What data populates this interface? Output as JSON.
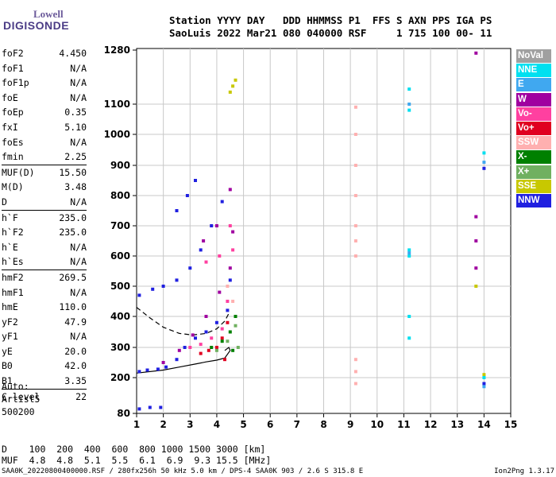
{
  "logo": {
    "line1": "Lowell",
    "line2": "DIGISONDE"
  },
  "header": {
    "line1": "Station YYYY DAY   DDD HHMMSS P1  FFS S AXN PPS IGA PS",
    "line2": "SaoLuis 2022 Mar21 080 040000 RSF     1 715 100 00- 11"
  },
  "params": [
    {
      "group": [
        {
          "name": "foF2",
          "value": "4.450"
        },
        {
          "name": "foF1",
          "value": "N/A"
        },
        {
          "name": "foF1p",
          "value": "N/A"
        },
        {
          "name": "foE",
          "value": "N/A"
        },
        {
          "name": "foEp",
          "value": "0.35"
        },
        {
          "name": "fxI",
          "value": "5.10"
        },
        {
          "name": "foEs",
          "value": "N/A"
        },
        {
          "name": "fmin",
          "value": "2.25"
        }
      ]
    },
    {
      "group": [
        {
          "name": "MUF(D)",
          "value": "15.50"
        },
        {
          "name": "M(D)",
          "value": "3.48"
        },
        {
          "name": "D",
          "value": "N/A"
        }
      ]
    },
    {
      "group": [
        {
          "name": "h`F",
          "value": "235.0"
        },
        {
          "name": "h`F2",
          "value": "235.0"
        },
        {
          "name": "h`E",
          "value": "N/A"
        },
        {
          "name": "h`Es",
          "value": "N/A"
        }
      ]
    },
    {
      "group": [
        {
          "name": "hmF2",
          "value": "269.5"
        },
        {
          "name": "hmF1",
          "value": "N/A"
        },
        {
          "name": "hmE",
          "value": "110.0"
        },
        {
          "name": "yF2",
          "value": "47.9"
        },
        {
          "name": "yF1",
          "value": "N/A"
        },
        {
          "name": "yE",
          "value": "20.0"
        },
        {
          "name": "B0",
          "value": "42.0"
        },
        {
          "name": "B1",
          "value": "3.35"
        }
      ]
    },
    {
      "group": [
        {
          "name": "C-level",
          "value": "22"
        }
      ]
    }
  ],
  "auto": {
    "line1": "Auto:",
    "line2": "Artist5",
    "line3": "500200"
  },
  "dmuf": {
    "d_line": "D    100  200  400  600  800 1000 1500 3000 [km]",
    "muf_line": "MUF  4.8  4.8  5.1  5.5  6.1  6.9  9.3 15.5 [MHz]"
  },
  "footer": {
    "left": "SAA0K_20220800400000.RSF / 280fx256h 50 kHz 5.0 km / DPS-4 SAA0K 903 / 2.6 S 315.8 E",
    "right": "Ion2Png 1.3.17"
  },
  "legend": [
    {
      "label": "NoVal",
      "color": "#a0a0a0"
    },
    {
      "label": "NNE",
      "color": "#00e0f0"
    },
    {
      "label": "E",
      "color": "#40a8f0"
    },
    {
      "label": "W",
      "color": "#a000a0"
    },
    {
      "label": "Vo-",
      "color": "#ff40a0"
    },
    {
      "label": "Vo+",
      "color": "#e00020"
    },
    {
      "label": "SSW",
      "color": "#ffb0b0"
    },
    {
      "label": "X-",
      "color": "#008000"
    },
    {
      "label": "X+",
      "color": "#70b060"
    },
    {
      "label": "SSE",
      "color": "#c8c800"
    },
    {
      "label": "NNW",
      "color": "#2020e0"
    }
  ],
  "chart_data": {
    "type": "scatter",
    "title": "",
    "xlabel": "",
    "ylabel": "",
    "xlim": [
      1,
      15
    ],
    "ylim": [
      80,
      1280
    ],
    "xticks": [
      1,
      2,
      3,
      4,
      5,
      6,
      7,
      8,
      9,
      10,
      11,
      12,
      13,
      14,
      15
    ],
    "yticks": [
      80,
      200,
      300,
      400,
      500,
      600,
      700,
      800,
      900,
      1000,
      1100,
      1280
    ],
    "grid": true,
    "series": [
      {
        "name": "NNW",
        "color": "#2020e0",
        "points": [
          [
            1.1,
            220
          ],
          [
            1.4,
            225
          ],
          [
            1.8,
            228
          ],
          [
            2.1,
            235
          ],
          [
            2.5,
            260
          ],
          [
            2.8,
            300
          ],
          [
            3.2,
            330
          ],
          [
            3.6,
            350
          ],
          [
            4.0,
            380
          ],
          [
            4.4,
            420
          ],
          [
            4.5,
            520
          ],
          [
            1.1,
            470
          ],
          [
            1.6,
            490
          ],
          [
            2.0,
            500
          ],
          [
            2.5,
            520
          ],
          [
            3.0,
            560
          ],
          [
            3.4,
            620
          ],
          [
            3.8,
            700
          ],
          [
            4.2,
            780
          ],
          [
            1.1,
            95
          ],
          [
            1.5,
            100
          ],
          [
            1.9,
            100
          ],
          [
            2.5,
            750
          ],
          [
            2.9,
            800
          ],
          [
            3.2,
            850
          ],
          [
            14.0,
            180
          ],
          [
            14.0,
            890
          ]
        ]
      },
      {
        "name": "W",
        "color": "#a000a0",
        "points": [
          [
            2.0,
            250
          ],
          [
            2.6,
            290
          ],
          [
            3.1,
            340
          ],
          [
            3.6,
            400
          ],
          [
            4.1,
            480
          ],
          [
            4.5,
            560
          ],
          [
            4.6,
            680
          ],
          [
            3.5,
            650
          ],
          [
            4.0,
            700
          ],
          [
            4.5,
            820
          ],
          [
            13.7,
            730
          ],
          [
            13.7,
            650
          ],
          [
            13.7,
            560
          ],
          [
            13.7,
            1270
          ]
        ]
      },
      {
        "name": "Vo-",
        "color": "#ff40a0",
        "points": [
          [
            3.0,
            300
          ],
          [
            3.4,
            310
          ],
          [
            3.8,
            330
          ],
          [
            4.2,
            360
          ],
          [
            4.4,
            450
          ],
          [
            4.6,
            620
          ],
          [
            3.6,
            580
          ],
          [
            4.1,
            600
          ],
          [
            4.5,
            700
          ]
        ]
      },
      {
        "name": "Vo+",
        "color": "#e00020",
        "points": [
          [
            3.4,
            280
          ],
          [
            3.7,
            290
          ],
          [
            4.0,
            300
          ],
          [
            4.2,
            330
          ],
          [
            4.4,
            380
          ],
          [
            4.3,
            260
          ]
        ]
      },
      {
        "name": "SSW",
        "color": "#ffb0b0",
        "points": [
          [
            9.2,
            180
          ],
          [
            9.2,
            220
          ],
          [
            9.2,
            260
          ],
          [
            9.2,
            600
          ],
          [
            9.2,
            650
          ],
          [
            9.2,
            700
          ],
          [
            9.2,
            800
          ],
          [
            9.2,
            900
          ],
          [
            9.2,
            1000
          ],
          [
            9.2,
            1090
          ],
          [
            4.4,
            500
          ],
          [
            4.6,
            450
          ]
        ]
      },
      {
        "name": "X-",
        "color": "#008000",
        "points": [
          [
            3.8,
            300
          ],
          [
            4.2,
            320
          ],
          [
            4.5,
            350
          ],
          [
            4.7,
            400
          ],
          [
            4.6,
            290
          ]
        ]
      },
      {
        "name": "X+",
        "color": "#70b060",
        "points": [
          [
            4.0,
            290
          ],
          [
            4.4,
            320
          ],
          [
            4.7,
            370
          ],
          [
            4.8,
            300
          ]
        ]
      },
      {
        "name": "SSE",
        "color": "#c8c800",
        "points": [
          [
            4.5,
            1140
          ],
          [
            4.6,
            1160
          ],
          [
            4.7,
            1180
          ],
          [
            14.0,
            210
          ],
          [
            13.7,
            500
          ]
        ]
      },
      {
        "name": "NNE",
        "color": "#00e0f0",
        "points": [
          [
            11.2,
            1150
          ],
          [
            11.2,
            1080
          ],
          [
            11.2,
            620
          ],
          [
            11.2,
            600
          ],
          [
            11.2,
            330
          ],
          [
            11.2,
            400
          ],
          [
            14.0,
            200
          ],
          [
            14.0,
            940
          ]
        ]
      },
      {
        "name": "E",
        "color": "#40a8f0",
        "points": [
          [
            11.2,
            1100
          ],
          [
            11.2,
            610
          ],
          [
            14.0,
            170
          ],
          [
            14.0,
            910
          ]
        ]
      }
    ],
    "fitted_curves": [
      {
        "name": "profile-solid",
        "style": "solid",
        "points": [
          [
            1.0,
            215
          ],
          [
            2.0,
            225
          ],
          [
            2.6,
            235
          ],
          [
            3.2,
            245
          ],
          [
            3.6,
            252
          ],
          [
            4.0,
            258
          ],
          [
            4.3,
            265
          ],
          [
            4.5,
            290
          ],
          [
            4.45,
            300
          ],
          [
            4.3,
            290
          ]
        ]
      },
      {
        "name": "profile-dashed",
        "style": "dashed",
        "points": [
          [
            1.0,
            430
          ],
          [
            1.5,
            395
          ],
          [
            2.0,
            365
          ],
          [
            2.6,
            345
          ],
          [
            3.1,
            340
          ],
          [
            3.6,
            345
          ],
          [
            4.0,
            360
          ],
          [
            4.3,
            385
          ],
          [
            4.45,
            410
          ]
        ]
      }
    ]
  }
}
